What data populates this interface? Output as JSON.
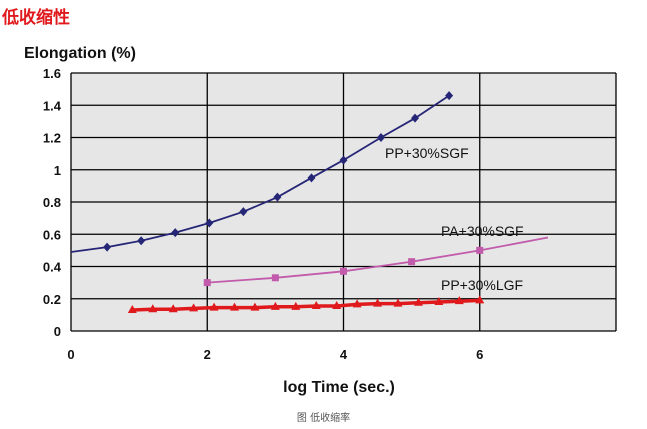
{
  "page": {
    "title": "低收缩性",
    "caption": "图 低收缩率"
  },
  "colors": {
    "plot_bg": "#e6e6e6",
    "grid": "#000000",
    "pp_sgf": "#262677",
    "pa_sgf": "#c25bab",
    "pp_lgf": "#e0191c"
  },
  "chart_data": {
    "type": "line",
    "ylabel": "Elongation (%)",
    "xlabel": "log Time (sec.)",
    "xlim": [
      0,
      8
    ],
    "ylim": [
      0,
      1.6
    ],
    "grid": true,
    "x_ticks": [
      0,
      2,
      4,
      6
    ],
    "x_tick_labels": [
      "0",
      "2",
      "4",
      "6"
    ],
    "y_ticks": [
      0,
      0.2,
      0.4,
      0.6,
      0.8,
      1.0,
      1.2,
      1.4,
      1.6
    ],
    "y_tick_labels": [
      "0",
      "0.2",
      "0.4",
      "0.6",
      "0.8",
      "1",
      "1.2",
      "1.4",
      "1.6"
    ],
    "series": [
      {
        "name": "PP+30%SGF",
        "color_key": "pp_sgf",
        "marker": "diamond",
        "x": [
          0,
          0.53,
          1.03,
          1.53,
          2.03,
          2.53,
          3.03,
          3.53,
          4.0,
          4.55,
          5.05,
          5.55
        ],
        "y": [
          0.49,
          0.52,
          0.56,
          0.61,
          0.67,
          0.74,
          0.83,
          0.95,
          1.06,
          1.2,
          1.32,
          1.46
        ],
        "marker_indices": [
          1,
          2,
          3,
          4,
          5,
          6,
          7,
          8,
          9,
          10,
          11
        ]
      },
      {
        "name": "PA+30%SGF",
        "color_key": "pa_sgf",
        "marker": "square",
        "x": [
          2.0,
          3.0,
          4.0,
          5.0,
          6.0,
          7.0
        ],
        "y": [
          0.3,
          0.33,
          0.37,
          0.43,
          0.5,
          0.58
        ],
        "marker_indices": [
          0,
          1,
          2,
          3,
          4
        ]
      },
      {
        "name": "PP+30%LGF",
        "color_key": "pp_lgf",
        "marker": "triangle",
        "x": [
          0.9,
          1.2,
          1.5,
          1.8,
          2.1,
          2.4,
          2.7,
          3.0,
          3.3,
          3.6,
          3.9,
          4.2,
          4.5,
          4.8,
          5.1,
          5.4,
          5.7,
          6.0
        ],
        "y": [
          0.13,
          0.135,
          0.135,
          0.14,
          0.145,
          0.145,
          0.145,
          0.15,
          0.15,
          0.155,
          0.155,
          0.165,
          0.17,
          0.17,
          0.175,
          0.18,
          0.185,
          0.19
        ],
        "marker_indices": [
          0,
          1,
          2,
          3,
          4,
          5,
          6,
          7,
          8,
          9,
          10,
          11,
          12,
          13,
          14,
          15,
          16,
          17
        ]
      }
    ]
  }
}
